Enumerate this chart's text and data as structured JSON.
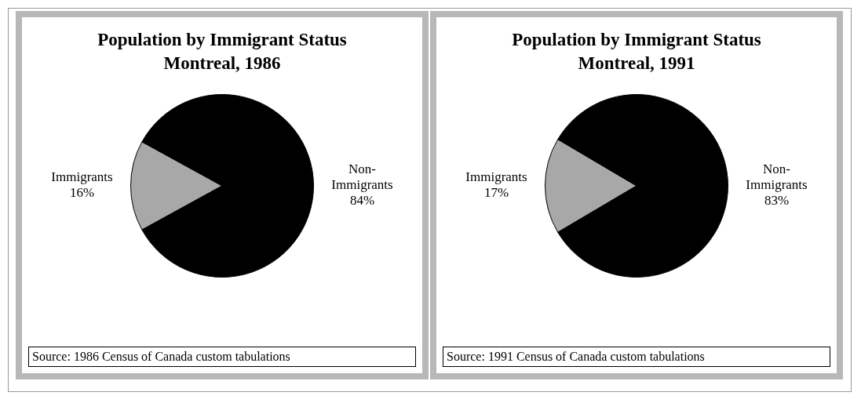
{
  "chart_data": [
    {
      "type": "pie",
      "title": "Population by Immigrant Status\nMontreal, 1986",
      "categories": [
        "Immigrants",
        "Non-Immigrants"
      ],
      "values": [
        16,
        84
      ],
      "value_labels": [
        "16%",
        "84%"
      ],
      "colors": [
        "#a8a8a8",
        "#000000"
      ],
      "legend": false,
      "annotations": [
        "Source: 1986 Census of Canada custom tabulations"
      ]
    },
    {
      "type": "pie",
      "title": "Population by Immigrant Status\nMontreal, 1991",
      "categories": [
        "Immigrants",
        "Non-Immigrants"
      ],
      "values": [
        17,
        83
      ],
      "value_labels": [
        "17%",
        "83%"
      ],
      "colors": [
        "#a8a8a8",
        "#000000"
      ],
      "legend": false,
      "annotations": [
        "Source: 1991 Census of Canada custom tabulations"
      ]
    }
  ]
}
